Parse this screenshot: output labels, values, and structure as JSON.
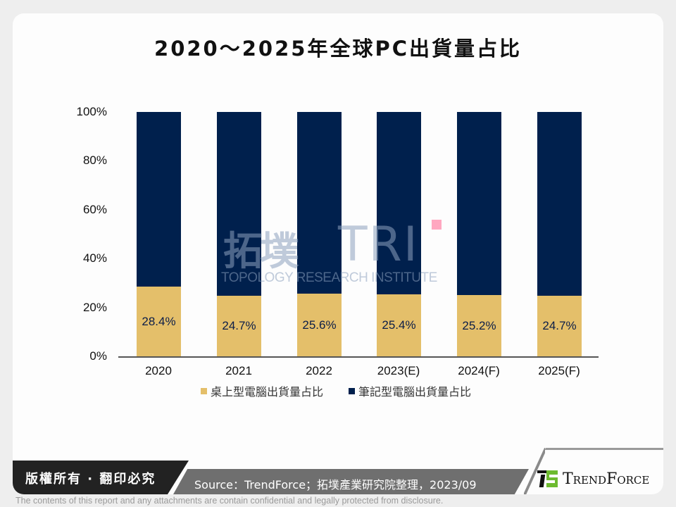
{
  "title": "2020～2025年全球PC出貨量占比",
  "colors": {
    "desktop": "#e4bf6a",
    "notebook": "#00204d",
    "background": "#eeeeee",
    "card": "#fdfdfd"
  },
  "y_axis": {
    "ticks": [
      "100%",
      "80%",
      "60%",
      "40%",
      "20%",
      "0%"
    ]
  },
  "x_axis": {
    "ticks": [
      "2020",
      "2021",
      "2022",
      "2023(E)",
      "2024(F)",
      "2025(F)"
    ]
  },
  "bars": [
    {
      "category": "2020",
      "desktop_label": "28.4%"
    },
    {
      "category": "2021",
      "desktop_label": "24.7%"
    },
    {
      "category": "2022",
      "desktop_label": "25.6%"
    },
    {
      "category": "2023(E)",
      "desktop_label": "25.4%"
    },
    {
      "category": "2024(F)",
      "desktop_label": "25.2%"
    },
    {
      "category": "2025(F)",
      "desktop_label": "24.7%"
    }
  ],
  "legend": [
    {
      "label": "桌上型電腦出貨量占比",
      "color": "#e4bf6a"
    },
    {
      "label": "筆記型電腦出貨量占比",
      "color": "#00204d"
    }
  ],
  "watermark": {
    "cn": "拓墣",
    "logo": "TRI",
    "subtitle": "TOPOLOGY RESEARCH INSTITUTE"
  },
  "footer": {
    "copyright": "版權所有 · 翻印必究",
    "source": "Source：TrendForce；拓墣產業研究院整理，2023/09",
    "brand": "TrendForce",
    "disclaimer": "The contents of this report and any attachments are contain confidential and legally protected from disclosure."
  },
  "chart_data": {
    "type": "bar",
    "stacked": true,
    "percent_stacked": true,
    "title": "2020～2025年全球PC出貨量占比",
    "categories": [
      "2020",
      "2021",
      "2022",
      "2023(E)",
      "2024(F)",
      "2025(F)"
    ],
    "series": [
      {
        "name": "桌上型電腦出貨量占比",
        "values": [
          28.4,
          24.7,
          25.6,
          25.4,
          25.2,
          24.7
        ],
        "color": "#e4bf6a"
      },
      {
        "name": "筆記型電腦出貨量占比",
        "values": [
          71.6,
          75.3,
          74.4,
          74.6,
          74.8,
          75.3
        ],
        "color": "#00204d"
      }
    ],
    "xlabel": "",
    "ylabel": "",
    "ylim": [
      0,
      100
    ],
    "yticks": [
      "0%",
      "20%",
      "40%",
      "60%",
      "80%",
      "100%"
    ],
    "grid": false,
    "legend_position": "bottom",
    "data_labels": "desktop series only"
  }
}
